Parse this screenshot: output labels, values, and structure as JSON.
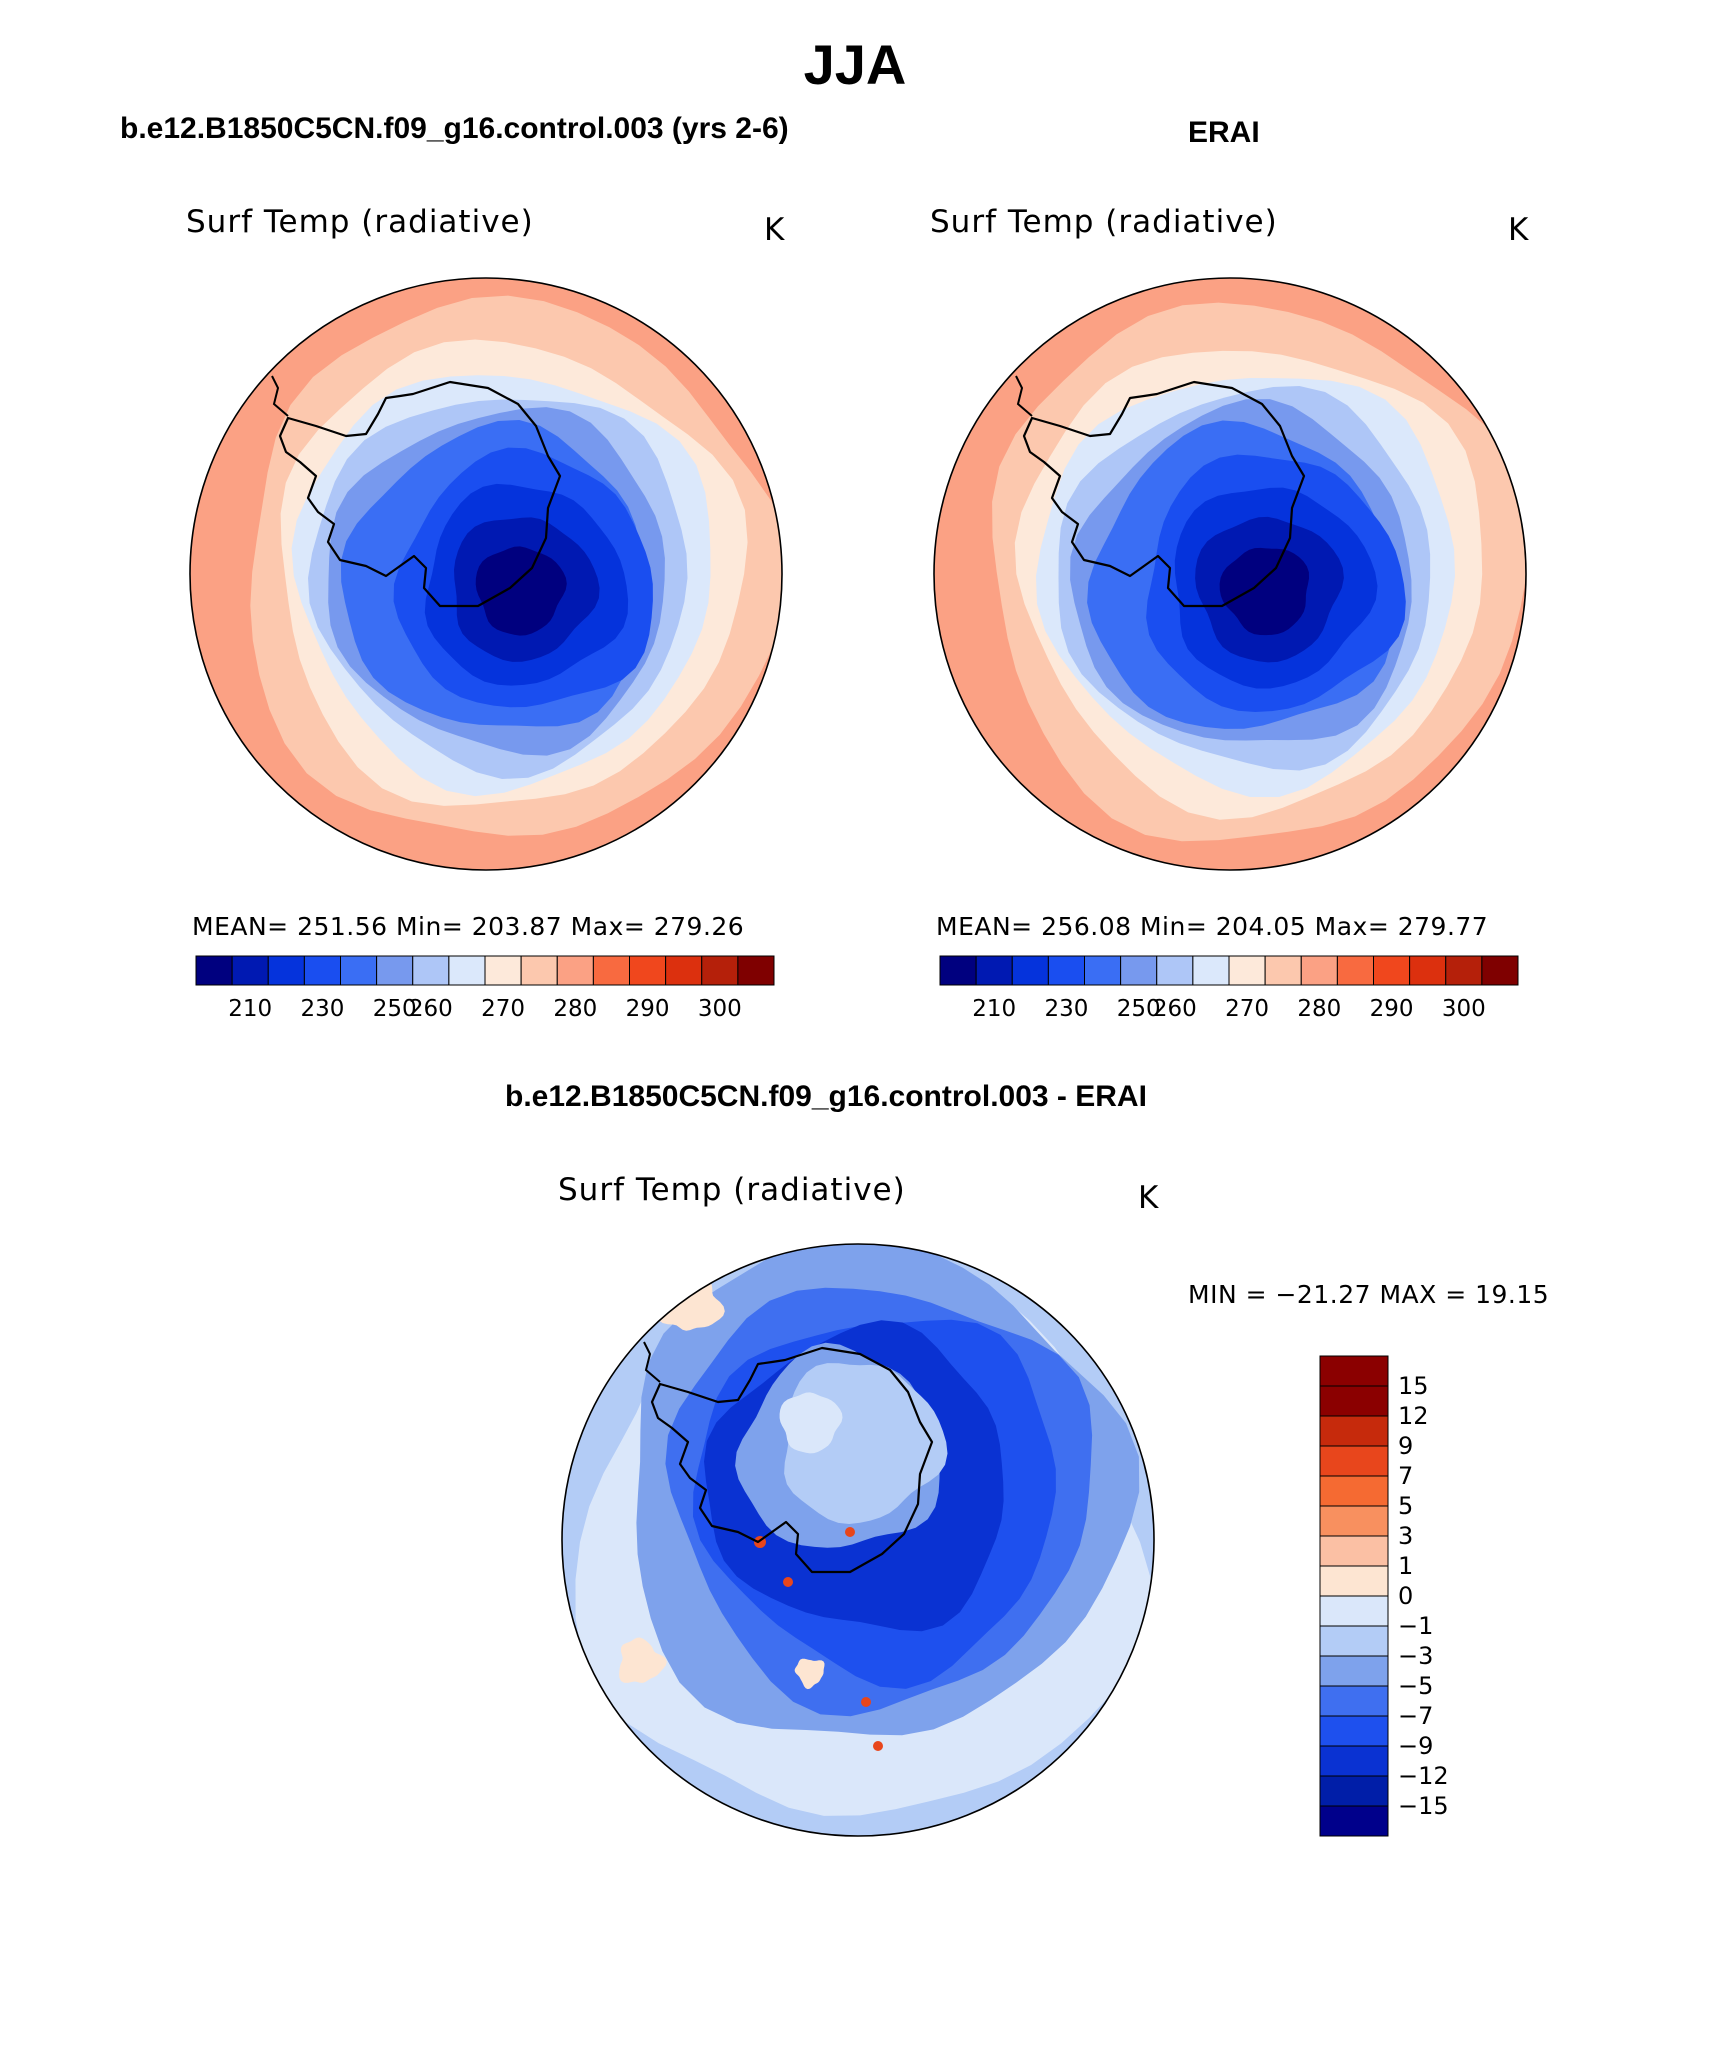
{
  "title": "JJA",
  "colors": {
    "abs_scale": [
      "#00007f",
      "#0019b2",
      "#0533dc",
      "#1a4ef0",
      "#3a6ef4",
      "#7799ee",
      "#aec6f7",
      "#dbe8fb",
      "#fde9da",
      "#fcc8ae",
      "#fba184",
      "#f86a40",
      "#f0471d",
      "#dc300e",
      "#b5200a",
      "#7f0000"
    ],
    "diff_scale": [
      "#00008b",
      "#001ea8",
      "#0a32d2",
      "#1e50ee",
      "#3f6ff0",
      "#7ea2ec",
      "#b3ccf6",
      "#dae7fa",
      "#fde5d2",
      "#fbc0a4",
      "#f8905f",
      "#f56a32",
      "#e8461c",
      "#c62a0c",
      "#8b0000"
    ],
    "coast": "#000000"
  },
  "panels": [
    {
      "case": "b.e12.B1850C5CN.f09_g16.control.003 (yrs 2-6)",
      "variable": "Surf Temp (radiative)",
      "units": "K",
      "stats": "MEAN=  251.56    Min=  203.87    Max=  279.26",
      "colorbar_ticks": [
        "210",
        "230",
        "250",
        "260",
        "270",
        "280",
        "290",
        "300"
      ]
    },
    {
      "case": "ERAI",
      "variable": "Surf Temp (radiative)",
      "units": "K",
      "stats": "MEAN=  256.08    Min=  204.05    Max=  279.77",
      "colorbar_ticks": [
        "210",
        "230",
        "250",
        "260",
        "270",
        "280",
        "290",
        "300"
      ]
    }
  ],
  "difference": {
    "case": "b.e12.B1850C5CN.f09_g16.control.003 - ERAI",
    "variable": "Surf Temp (radiative)",
    "units": "K",
    "minmax": "MIN  =  −21.27   MAX  =    19.15",
    "colorbar_ticks": [
      "15",
      "12",
      "9",
      "7",
      "5",
      "3",
      "1",
      "0",
      "−1",
      "−3",
      "−5",
      "−7",
      "−9",
      "−12",
      "−15"
    ]
  }
}
